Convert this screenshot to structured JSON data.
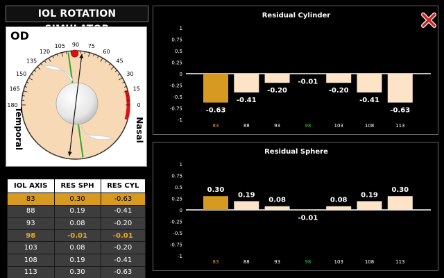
{
  "app": {
    "title": "IOL ROTATION SIMULATOR"
  },
  "dial": {
    "eye_label": "OD",
    "temporal_label": "Temporal",
    "nasal_label": "Nasal",
    "degree_labels": [
      "0",
      "15",
      "30",
      "45",
      "60",
      "75",
      "90",
      "105",
      "120",
      "135",
      "150",
      "165",
      "180"
    ],
    "iol_axis_deg": 98,
    "target_axis_deg": 83,
    "marker_deg": 91,
    "colors": {
      "face": "#f8d9b5",
      "axis_line": "#2da82d",
      "marker": "#e01010",
      "nasal_bar": "#e01010"
    }
  },
  "table": {
    "headers": [
      "IOL AXIS",
      "RES SPH",
      "RES CYL"
    ],
    "rows": [
      [
        "83",
        "0.30",
        "-0.63"
      ],
      [
        "88",
        "0.19",
        "-0.41"
      ],
      [
        "93",
        "0.08",
        "-0.20"
      ],
      [
        "98",
        "-0.01",
        "-0.01"
      ],
      [
        "103",
        "0.08",
        "-0.20"
      ],
      [
        "108",
        "0.19",
        "-0.41"
      ],
      [
        "113",
        "0.30",
        "-0.63"
      ]
    ],
    "selected_row": 0,
    "highlight_row": 3
  },
  "close_icon": "close-x-icon",
  "chart_data": [
    {
      "type": "bar",
      "title": "Residual Cylinder",
      "categories": [
        "83",
        "88",
        "93",
        "98",
        "103",
        "108",
        "113"
      ],
      "values": [
        -0.63,
        -0.41,
        -0.2,
        -0.01,
        -0.2,
        -0.41,
        -0.63
      ],
      "value_labels": [
        "-0.63",
        "-0.41",
        "-0.20",
        "-0.01",
        "-0.20",
        "-0.41",
        "-0.63"
      ],
      "ylim": [
        -1,
        1
      ],
      "yticks": [
        "1",
        "0.75",
        "0.5",
        "0.25",
        "0",
        "-0.25",
        "-0.5",
        "-0.75",
        "-1"
      ],
      "ytick_values": [
        1,
        0.75,
        0.5,
        0.25,
        0,
        -0.25,
        -0.5,
        -0.75,
        -1
      ],
      "grid": false,
      "colors": {
        "bar": "#fde3c8",
        "selected_bar": "#d69a22",
        "selected_label": "#e39b2a",
        "highlight_label": "#2fc02f"
      },
      "selected_index": 0,
      "highlight_index": 3
    },
    {
      "type": "bar",
      "title": "Residual Sphere",
      "categories": [
        "83",
        "88",
        "93",
        "98",
        "103",
        "108",
        "113"
      ],
      "values": [
        0.3,
        0.19,
        0.08,
        -0.01,
        0.08,
        0.19,
        0.3
      ],
      "value_labels": [
        "0.30",
        "0.19",
        "0.08",
        "-0.01",
        "0.08",
        "0.19",
        "0.30"
      ],
      "ylim": [
        -1,
        1
      ],
      "yticks": [
        "1",
        "0.75",
        "0.5",
        "0.25",
        "0",
        "-0.25",
        "-0.5",
        "-0.75",
        "-1"
      ],
      "ytick_values": [
        1,
        0.75,
        0.5,
        0.25,
        0,
        -0.25,
        -0.5,
        -0.75,
        -1
      ],
      "grid": false,
      "colors": {
        "bar": "#fde3c8",
        "selected_bar": "#d69a22",
        "selected_label": "#e39b2a",
        "highlight_label": "#2fc02f"
      },
      "selected_index": 0,
      "highlight_index": 3
    }
  ]
}
